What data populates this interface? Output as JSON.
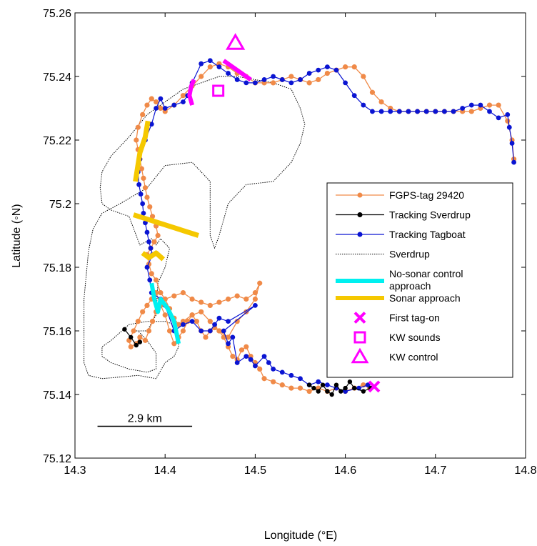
{
  "chart_data": {
    "type": "line",
    "title": "",
    "xlabel": "Longitude (°E)",
    "ylabel": "Latitude (◦N)",
    "xlim": [
      14.3,
      14.8
    ],
    "ylim": [
      75.12,
      75.26
    ],
    "xticks": [
      14.3,
      14.4,
      14.5,
      14.6,
      14.7,
      14.8
    ],
    "xtick_labels": [
      "14.3",
      "14.4",
      "14.5",
      "14.6",
      "14.7",
      "14.8"
    ],
    "yticks": [
      75.12,
      75.14,
      75.16,
      75.18,
      75.2,
      75.22,
      75.24,
      75.26
    ],
    "ytick_labels": [
      "75.12",
      "75.14",
      "75.16",
      "75.18",
      "75.2",
      "75.22",
      "75.24",
      "75.26"
    ],
    "grid": false,
    "legend_position": "right",
    "scale_bar": {
      "label": "2.9 km",
      "x": [
        14.325,
        14.43
      ],
      "y": 75.13
    },
    "colors": {
      "fgps": "#f08a48",
      "sverdrup_track": "#000000",
      "tagboat": "#0a14d2",
      "sverdrup": "#000000",
      "no_sonar": "#00f0f0",
      "sonar": "#f5c800",
      "marker": "#ff00ff"
    },
    "series": [
      {
        "name": "FGPS-tag 29420",
        "style": "orange-dots-line",
        "x": [
          14.627,
          14.62,
          14.61,
          14.6,
          14.59,
          14.58,
          14.57,
          14.56,
          14.55,
          14.54,
          14.53,
          14.52,
          14.51,
          14.505,
          14.5,
          14.495,
          14.49,
          14.485,
          14.48,
          14.475,
          14.47,
          14.465,
          14.46,
          14.455,
          14.45,
          14.445,
          14.44,
          14.435,
          14.43,
          14.425,
          14.42,
          14.415,
          14.41,
          14.405,
          14.4,
          14.395,
          14.39,
          14.385,
          14.38,
          14.375,
          14.37,
          14.365,
          14.36,
          14.362,
          14.368,
          14.372,
          14.378,
          14.382,
          14.386,
          14.39,
          14.395,
          14.4,
          14.405,
          14.41,
          14.415,
          14.42,
          14.43,
          14.44,
          14.45,
          14.46,
          14.47,
          14.48,
          14.49,
          14.5,
          14.505,
          14.5,
          14.49,
          14.48,
          14.47,
          14.46,
          14.45,
          14.44,
          14.43,
          14.42,
          14.41,
          14.4,
          14.395,
          14.39,
          14.385,
          14.382,
          14.38,
          14.384,
          14.388,
          14.392,
          14.39,
          14.386,
          14.383,
          14.38,
          14.378,
          14.376,
          14.374,
          14.372,
          14.37,
          14.368,
          14.37,
          14.375,
          14.38,
          14.385,
          14.39,
          14.395,
          14.4,
          14.41,
          14.42,
          14.43,
          14.44,
          14.45,
          14.46,
          14.47,
          14.48,
          14.49,
          14.5,
          14.51,
          14.52,
          14.53,
          14.54,
          14.55,
          14.56,
          14.57,
          14.58,
          14.59,
          14.6,
          14.61,
          14.62,
          14.63,
          14.64,
          14.65,
          14.66,
          14.67,
          14.68,
          14.69,
          14.7,
          14.71,
          14.72,
          14.73,
          14.74,
          14.75,
          14.76,
          14.77,
          14.78,
          14.785,
          14.787
        ],
        "y": [
          75.142,
          75.143,
          75.142,
          75.141,
          75.142,
          75.141,
          75.142,
          75.141,
          75.142,
          75.142,
          75.143,
          75.144,
          75.145,
          75.148,
          75.15,
          75.152,
          75.155,
          75.154,
          75.151,
          75.152,
          75.155,
          75.158,
          75.16,
          75.161,
          75.16,
          75.158,
          75.16,
          75.163,
          75.165,
          75.163,
          75.16,
          75.158,
          75.156,
          75.16,
          75.165,
          75.168,
          75.172,
          75.17,
          75.168,
          75.166,
          75.163,
          75.16,
          75.157,
          75.155,
          75.156,
          75.158,
          75.157,
          75.16,
          75.163,
          75.166,
          75.168,
          75.17,
          75.167,
          75.164,
          75.162,
          75.163,
          75.165,
          75.166,
          75.163,
          75.16,
          75.158,
          75.163,
          75.166,
          75.17,
          75.175,
          75.172,
          75.17,
          75.171,
          75.17,
          75.169,
          75.168,
          75.169,
          75.17,
          75.172,
          75.171,
          75.17,
          75.172,
          75.176,
          75.178,
          75.181,
          75.184,
          75.186,
          75.188,
          75.19,
          75.193,
          75.196,
          75.199,
          75.202,
          75.205,
          75.208,
          75.211,
          75.214,
          75.217,
          75.22,
          75.224,
          75.228,
          75.231,
          75.233,
          75.232,
          75.23,
          75.229,
          75.231,
          75.234,
          75.237,
          75.24,
          75.243,
          75.244,
          75.243,
          75.241,
          75.24,
          75.238,
          75.238,
          75.238,
          75.239,
          75.24,
          75.239,
          75.238,
          75.239,
          75.241,
          75.242,
          75.243,
          75.243,
          75.24,
          75.235,
          75.232,
          75.23,
          75.229,
          75.229,
          75.229,
          75.229,
          75.229,
          75.229,
          75.229,
          75.229,
          75.229,
          75.23,
          75.231,
          75.231,
          75.226,
          75.22,
          75.214
        ]
      },
      {
        "name": "Tracking Sverdrup",
        "style": "black-dots-line",
        "x": [
          14.628,
          14.62,
          14.61,
          14.605,
          14.6,
          14.595,
          14.59,
          14.585,
          14.58,
          14.575,
          14.57,
          14.565,
          14.56
        ],
        "y": [
          75.142,
          75.141,
          75.142,
          75.144,
          75.142,
          75.141,
          75.143,
          75.14,
          75.141,
          75.143,
          75.141,
          75.142,
          75.143
        ]
      },
      {
        "name": "Tracking Sverdrup",
        "style": "black-dots-line",
        "x": [
          14.355,
          14.362,
          14.368,
          14.372
        ],
        "y": [
          75.1605,
          75.158,
          75.1555,
          75.1565
        ]
      },
      {
        "name": "Tracking Tagboat",
        "style": "blue-dots-line",
        "x": [
          14.625,
          14.615,
          14.6,
          14.59,
          14.58,
          14.57,
          14.56,
          14.55,
          14.54,
          14.53,
          14.52,
          14.515,
          14.51,
          14.5,
          14.495,
          14.49,
          14.48,
          14.475,
          14.47,
          14.465,
          14.5,
          14.47,
          14.46,
          14.455,
          14.45,
          14.44,
          14.43,
          14.42,
          14.41,
          14.4,
          14.395,
          14.385,
          14.383,
          14.38,
          14.386,
          14.384,
          14.382,
          14.38,
          14.378,
          14.376,
          14.375,
          14.373,
          14.371,
          14.37,
          14.372,
          14.378,
          14.385,
          14.39,
          14.395,
          14.4,
          14.41,
          14.42,
          14.425,
          14.43,
          14.44,
          14.45,
          14.46,
          14.47,
          14.48,
          14.49,
          14.5,
          14.51,
          14.52,
          14.53,
          14.54,
          14.55,
          14.56,
          14.57,
          14.58,
          14.59,
          14.6,
          14.61,
          14.62,
          14.63,
          14.64,
          14.65,
          14.66,
          14.67,
          14.68,
          14.69,
          14.7,
          14.71,
          14.72,
          14.73,
          14.74,
          14.75,
          14.76,
          14.77,
          14.78,
          14.782,
          14.785,
          14.787
        ],
        "y": [
          75.143,
          75.142,
          75.141,
          75.142,
          75.143,
          75.144,
          75.143,
          75.145,
          75.146,
          75.147,
          75.148,
          75.15,
          75.152,
          75.149,
          75.151,
          75.152,
          75.15,
          75.158,
          75.156,
          75.16,
          75.168,
          75.163,
          75.164,
          75.162,
          75.16,
          75.16,
          75.163,
          75.162,
          75.16,
          75.168,
          75.17,
          75.172,
          75.176,
          75.18,
          75.184,
          75.186,
          75.188,
          75.191,
          75.194,
          75.197,
          75.2,
          75.203,
          75.206,
          75.21,
          75.214,
          75.22,
          75.225,
          75.23,
          75.233,
          75.23,
          75.231,
          75.232,
          75.234,
          75.238,
          75.244,
          75.245,
          75.243,
          75.241,
          75.239,
          75.238,
          75.238,
          75.239,
          75.24,
          75.239,
          75.238,
          75.239,
          75.241,
          75.242,
          75.243,
          75.242,
          75.238,
          75.234,
          75.231,
          75.229,
          75.229,
          75.229,
          75.229,
          75.229,
          75.229,
          75.229,
          75.229,
          75.229,
          75.229,
          75.23,
          75.231,
          75.231,
          75.229,
          75.227,
          75.228,
          75.224,
          75.219,
          75.213
        ]
      },
      {
        "name": "Sverdrup",
        "style": "black-dotted-line",
        "x": [
          14.368,
          14.38,
          14.39,
          14.392,
          14.4,
          14.405,
          14.395,
          14.39,
          14.385,
          14.372,
          14.368,
          14.36,
          14.34,
          14.33,
          14.328,
          14.33,
          14.34,
          14.36,
          14.38,
          14.4,
          14.42,
          14.44,
          14.46,
          14.48,
          14.5,
          14.52,
          14.54,
          14.55,
          14.555,
          14.55,
          14.54,
          14.52,
          14.49,
          14.47,
          14.46,
          14.455,
          14.45,
          14.45,
          14.45,
          14.44,
          14.43,
          14.4,
          14.38,
          14.35,
          14.33,
          14.32,
          14.315,
          14.31,
          14.31,
          14.31,
          14.315,
          14.33,
          14.37,
          14.39,
          14.4,
          14.41,
          14.415,
          14.415,
          14.41,
          14.4,
          14.38,
          14.36,
          14.34,
          14.33,
          14.33,
          14.34,
          14.36,
          14.38,
          14.39,
          14.39,
          14.38,
          14.37
        ],
        "y": [
          75.16,
          75.16,
          75.165,
          75.175,
          75.18,
          75.186,
          75.189,
          75.187,
          75.189,
          75.187,
          75.19,
          75.196,
          75.198,
          75.2,
          75.205,
          75.21,
          75.215,
          75.221,
          75.228,
          75.232,
          75.236,
          75.238,
          75.24,
          75.24,
          75.239,
          75.238,
          75.236,
          75.23,
          75.225,
          75.219,
          75.213,
          75.207,
          75.206,
          75.2,
          75.19,
          75.186,
          75.19,
          75.2,
          75.207,
          75.21,
          75.213,
          75.212,
          75.205,
          75.2,
          75.197,
          75.192,
          75.185,
          75.17,
          75.16,
          75.15,
          75.146,
          75.145,
          75.146,
          75.145,
          75.15,
          75.152,
          75.155,
          75.159,
          75.162,
          75.163,
          75.163,
          75.162,
          75.157,
          75.155,
          75.152,
          75.15,
          75.148,
          75.147,
          75.148,
          75.153,
          75.157,
          75.16
        ]
      },
      {
        "name": "No-sonar control approach",
        "style": "cyan-thick-line",
        "x": [
          14.385,
          14.388,
          14.392,
          14.395,
          14.403,
          14.41,
          14.415
        ],
        "y": [
          75.175,
          75.17,
          75.166,
          75.17,
          75.167,
          75.163,
          75.156
        ]
      },
      {
        "name": "Sonar approach",
        "style": "yellow-thick-line",
        "x": [
          14.367,
          14.372,
          14.378,
          14.381
        ],
        "y": [
          75.207,
          75.216,
          75.221,
          75.226
        ]
      },
      {
        "name": "Sonar approach",
        "style": "yellow-thick-line",
        "x": [
          14.365,
          14.437
        ],
        "y": [
          75.1965,
          75.19
        ]
      },
      {
        "name": "Sonar approach",
        "style": "yellow-thick-line",
        "x": [
          14.375,
          14.382,
          14.39,
          14.398
        ],
        "y": [
          75.1845,
          75.183,
          75.1845,
          75.1825
        ]
      },
      {
        "name": "KW segment",
        "style": "magenta-thick-line",
        "x": [
          14.43,
          14.427,
          14.429,
          14.432
        ],
        "y": [
          75.231,
          75.234,
          75.237,
          75.239
        ]
      },
      {
        "name": "KW segment",
        "style": "magenta-thick-line",
        "x": [
          14.465,
          14.475,
          14.485,
          14.495
        ],
        "y": [
          75.245,
          75.243,
          75.241,
          75.239
        ]
      }
    ],
    "markers": [
      {
        "name": "First tag-on",
        "shape": "x",
        "x": [
          14.632
        ],
        "y": [
          75.1425
        ]
      },
      {
        "name": "KW sounds",
        "shape": "square",
        "x": [
          14.459
        ],
        "y": [
          75.2355
        ]
      },
      {
        "name": "KW control",
        "shape": "triangle",
        "x": [
          14.478
        ],
        "y": [
          75.2505
        ]
      }
    ],
    "legend": [
      {
        "label": "FGPS-tag 29420",
        "kind": "line-dot",
        "color": "#f08a48"
      },
      {
        "label": "Tracking Sverdrup",
        "kind": "line-dot",
        "color": "#000000"
      },
      {
        "label": "Tracking Tagboat",
        "kind": "line-dot",
        "color": "#0a14d2"
      },
      {
        "label": "Sverdrup",
        "kind": "dotted",
        "color": "#000000"
      },
      {
        "label": "No-sonar control",
        "label2": "approach",
        "kind": "thick",
        "color": "#00f0f0"
      },
      {
        "label": "Sonar approach",
        "kind": "thick",
        "color": "#f5c800"
      },
      {
        "label": "First tag-on",
        "kind": "x",
        "color": "#ff00ff"
      },
      {
        "label": "KW sounds",
        "kind": "square",
        "color": "#ff00ff"
      },
      {
        "label": "KW control",
        "kind": "triangle",
        "color": "#ff00ff"
      }
    ]
  }
}
